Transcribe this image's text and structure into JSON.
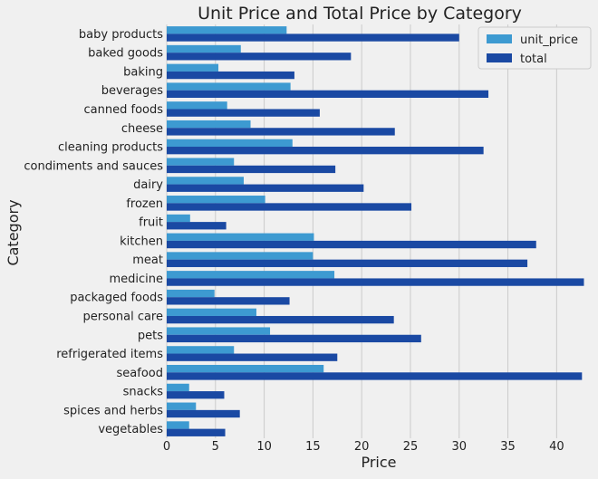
{
  "chart_data": {
    "type": "bar",
    "orientation": "horizontal",
    "title": "Unit Price and Total Price by Category",
    "xlabel": "Price",
    "ylabel": "Category",
    "xlim": [
      0,
      43.5
    ],
    "xticks": [
      0,
      5,
      10,
      15,
      20,
      25,
      30,
      35,
      40
    ],
    "grid": true,
    "legend_position": "top-right",
    "categories": [
      "baby products",
      "baked goods",
      "baking",
      "beverages",
      "canned foods",
      "cheese",
      "cleaning products",
      "condiments and sauces",
      "dairy",
      "frozen",
      "fruit",
      "kitchen",
      "meat",
      "medicine",
      "packaged foods",
      "personal care",
      "pets",
      "refrigerated items",
      "seafood",
      "snacks",
      "spices and herbs",
      "vegetables"
    ],
    "series": [
      {
        "name": "unit_price",
        "color": "#3d9ad1",
        "values": [
          12.3,
          7.6,
          5.3,
          12.7,
          6.2,
          8.6,
          12.9,
          6.9,
          7.9,
          10.1,
          2.4,
          15.1,
          15.0,
          17.2,
          4.9,
          9.2,
          10.6,
          6.9,
          16.1,
          2.3,
          3.0,
          2.3
        ]
      },
      {
        "name": "total",
        "color": "#1a49a3",
        "values": [
          30.0,
          18.9,
          13.1,
          33.0,
          15.7,
          23.4,
          32.5,
          17.3,
          20.2,
          25.1,
          6.1,
          37.9,
          37.0,
          42.8,
          12.6,
          23.3,
          26.1,
          17.5,
          42.6,
          5.9,
          7.5,
          6.0
        ]
      }
    ]
  }
}
